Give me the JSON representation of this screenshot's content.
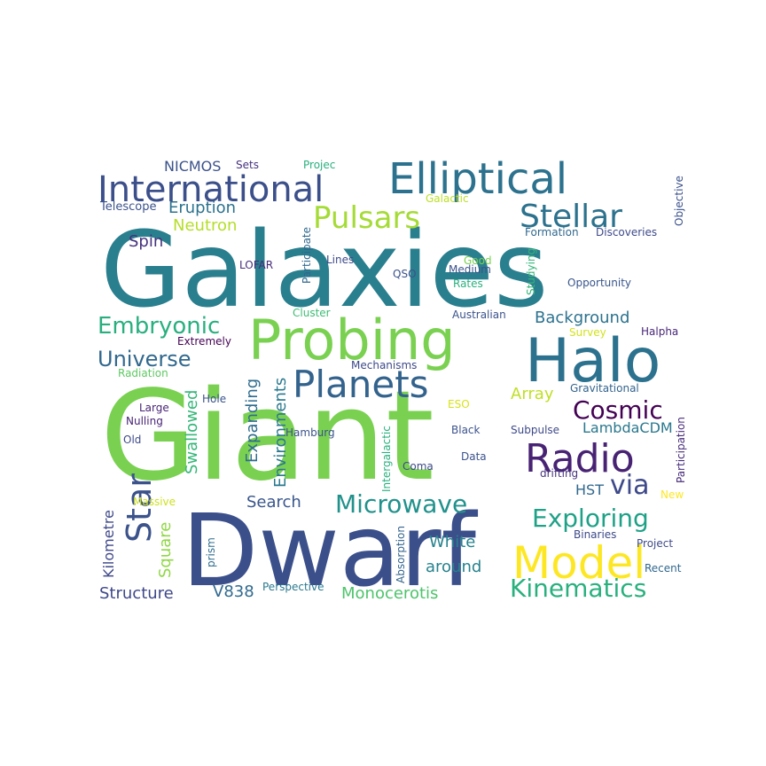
{
  "words": [
    {
      "text": "Galaxies",
      "color": "#2a7f8e"
    },
    {
      "text": "Giant",
      "color": "#7ad151"
    },
    {
      "text": "Dwarf",
      "color": "#3b4f8a"
    },
    {
      "text": "Probing",
      "color": "#7ad151"
    },
    {
      "text": "Halo",
      "color": "#2c728e"
    },
    {
      "text": "Elliptical",
      "color": "#2c728e"
    },
    {
      "text": "International",
      "color": "#3b4f8a"
    },
    {
      "text": "Stellar",
      "color": "#2c728e"
    },
    {
      "text": "Planets",
      "color": "#33638d"
    },
    {
      "text": "Pulsars",
      "color": "#a5db36"
    },
    {
      "text": "Radio",
      "color": "#482374"
    },
    {
      "text": "Model",
      "color": "#fde725"
    },
    {
      "text": "Microwave",
      "color": "#21918c"
    },
    {
      "text": "Exploring",
      "color": "#1fa187"
    },
    {
      "text": "Kinematics",
      "color": "#2ab07f"
    },
    {
      "text": "Star",
      "color": "#3b528b"
    },
    {
      "text": "Cosmic",
      "color": "#440154"
    },
    {
      "text": "via",
      "color": "#3e4989"
    },
    {
      "text": "Embryonic",
      "color": "#29af7f"
    },
    {
      "text": "Universe",
      "color": "#31688e"
    },
    {
      "text": "Background",
      "color": "#2c728e"
    },
    {
      "text": "Eruption",
      "color": "#2c728e"
    },
    {
      "text": "Neutron",
      "color": "#b5de2b"
    },
    {
      "text": "NICMOS",
      "color": "#3b528b"
    },
    {
      "text": "Spin",
      "color": "#46327e"
    },
    {
      "text": "Swallowed",
      "color": "#35b779"
    },
    {
      "text": "Expanding",
      "color": "#2f6c8e"
    },
    {
      "text": "Environments",
      "color": "#2a788e"
    },
    {
      "text": "Search",
      "color": "#39568c"
    },
    {
      "text": "Square",
      "color": "#8fd744"
    },
    {
      "text": "Kilometre",
      "color": "#3f4889"
    },
    {
      "text": "Structure",
      "color": "#3f4889"
    },
    {
      "text": "V838",
      "color": "#30698e"
    },
    {
      "text": "Monocerotis",
      "color": "#4ec36b"
    },
    {
      "text": "White",
      "color": "#26828e"
    },
    {
      "text": "around",
      "color": "#26828e"
    },
    {
      "text": "Array",
      "color": "#c0df25"
    },
    {
      "text": "LambdaCDM",
      "color": "#2a788e"
    },
    {
      "text": "HST",
      "color": "#31688e"
    },
    {
      "text": "Telescope",
      "color": "#3b528b"
    },
    {
      "text": "Sets",
      "color": "#46327e"
    },
    {
      "text": "Projec",
      "color": "#29af7f"
    },
    {
      "text": "Galactic",
      "color": "#bddf26"
    },
    {
      "text": "Objective",
      "color": "#3b528b"
    },
    {
      "text": "Formation",
      "color": "#31688e"
    },
    {
      "text": "Discoveries",
      "color": "#3e4a89"
    },
    {
      "text": "Participate",
      "color": "#31688e"
    },
    {
      "text": "Lines",
      "color": "#3e4a89"
    },
    {
      "text": "LOFAR",
      "color": "#472c7a"
    },
    {
      "text": "Good",
      "color": "#7ad151"
    },
    {
      "text": "QSO",
      "color": "#3b528b"
    },
    {
      "text": "Medium",
      "color": "#3b528b"
    },
    {
      "text": "Rates",
      "color": "#2ab07f"
    },
    {
      "text": "Studying",
      "color": "#35b779"
    },
    {
      "text": "Opportunity",
      "color": "#39568c"
    },
    {
      "text": "Cluster",
      "color": "#3dbc74"
    },
    {
      "text": "Australian",
      "color": "#3b528b"
    },
    {
      "text": "Extremely",
      "color": "#440154"
    },
    {
      "text": "Survey",
      "color": "#d2e21b"
    },
    {
      "text": "Halpha",
      "color": "#482878"
    },
    {
      "text": "Radiation",
      "color": "#5ec962"
    },
    {
      "text": "Mechanisms",
      "color": "#3e4a89"
    },
    {
      "text": "Gravitational",
      "color": "#33638d"
    },
    {
      "text": "Hole",
      "color": "#3b528b"
    },
    {
      "text": "Large",
      "color": "#482475"
    },
    {
      "text": "Nulling",
      "color": "#482475"
    },
    {
      "text": "Old",
      "color": "#3e4a89"
    },
    {
      "text": "Hamburg",
      "color": "#3b528b"
    },
    {
      "text": "ESO",
      "color": "#d8e219"
    },
    {
      "text": "Black",
      "color": "#3b528b"
    },
    {
      "text": "Subpulse",
      "color": "#3e4a89"
    },
    {
      "text": "Participation",
      "color": "#472c7a"
    },
    {
      "text": "Intergalactic",
      "color": "#2ab07f"
    },
    {
      "text": "Data",
      "color": "#3b528b"
    },
    {
      "text": "Coma",
      "color": "#3e4a89"
    },
    {
      "text": "drifting",
      "color": "#46327e"
    },
    {
      "text": "New",
      "color": "#fde725"
    },
    {
      "text": "Massive",
      "color": "#cde11d"
    },
    {
      "text": "Absorption",
      "color": "#33638d"
    },
    {
      "text": "Binaries",
      "color": "#3e4a89"
    },
    {
      "text": "Project",
      "color": "#3e4a89"
    },
    {
      "text": "prism",
      "color": "#2f6c8e"
    },
    {
      "text": "Recent",
      "color": "#31688e"
    },
    {
      "text": "Perspective",
      "color": "#2a788e"
    }
  ]
}
